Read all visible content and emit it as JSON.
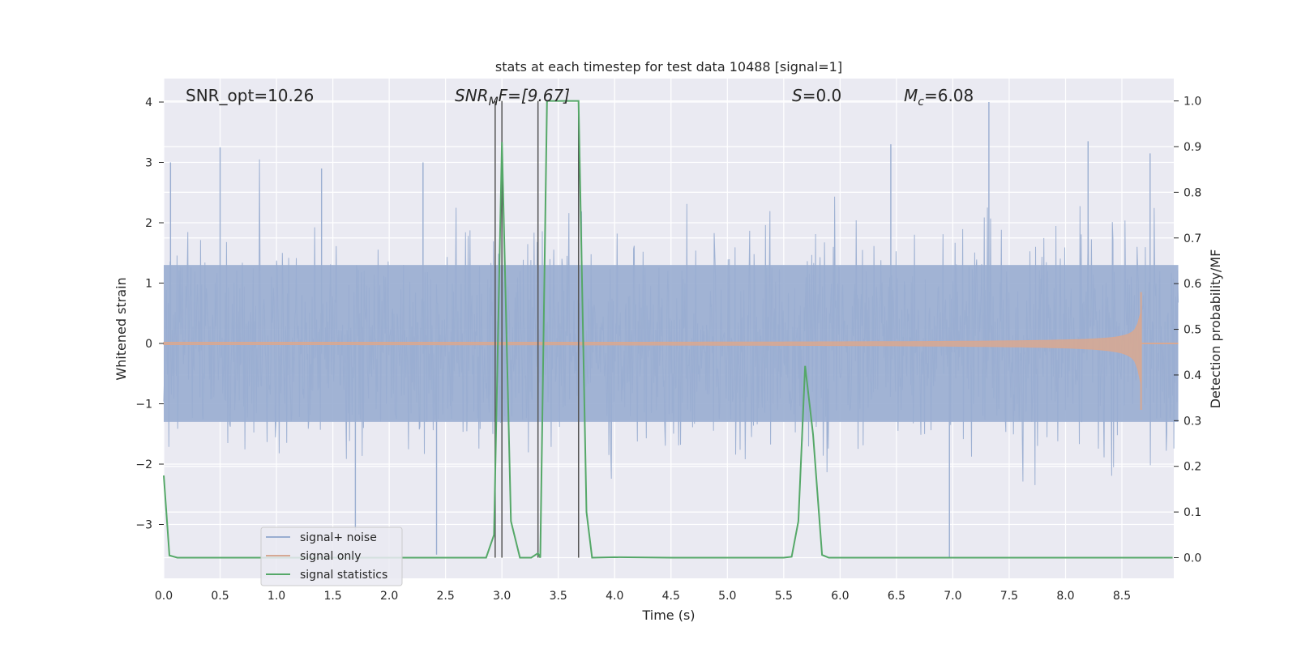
{
  "chart_data": {
    "type": "line",
    "title": "stats at each timestep for test data 10488 [signal=1]",
    "xlabel": "Time (s)",
    "ylabel": "Whitened strain",
    "y2label": "Detection probability/MF",
    "xlim": [
      0.0,
      9.0
    ],
    "ylim": [
      -3.9,
      4.35
    ],
    "y2lim": [
      -0.048,
      1.045
    ],
    "x_ticks": [
      "0.0",
      "0.5",
      "1.0",
      "1.5",
      "2.0",
      "2.5",
      "3.0",
      "3.5",
      "4.0",
      "4.5",
      "5.0",
      "5.5",
      "6.0",
      "6.5",
      "7.0",
      "7.5",
      "8.0",
      "8.5"
    ],
    "y_ticks": [
      "4",
      "3",
      "2",
      "1",
      "0",
      "−1",
      "−2",
      "−3"
    ],
    "y_tick_values": [
      4,
      3,
      2,
      1,
      0,
      -1,
      -2,
      -3
    ],
    "y2_ticks": [
      "1.0",
      "0.9",
      "0.8",
      "0.7",
      "0.6",
      "0.5",
      "0.4",
      "0.3",
      "0.2",
      "0.1",
      "0.0"
    ],
    "y2_tick_values": [
      1.0,
      0.9,
      0.8,
      0.7,
      0.6,
      0.5,
      0.4,
      0.3,
      0.2,
      0.1,
      0.0
    ],
    "grid": true,
    "legend_position": "lower-left",
    "annotations": {
      "snr_opt": "SNR_opt=10.26",
      "snr_mf_main": "SNR",
      "snr_mf_sub": "M",
      "snr_mf_rest": "F=[9.67]",
      "s_main": "S",
      "s_rest": "=0.0",
      "mc_main": "M",
      "mc_sub": "c",
      "mc_rest": "=6.08"
    },
    "vertical_markers": [
      2.94,
      3.0,
      3.32,
      3.68
    ],
    "series": [
      {
        "name": "signal+ noise",
        "color": "#9aaed1",
        "description_shape": "white-noise band, amplitude about ±1.3 with spikes to ±3.3",
        "time_range": [
          0.0,
          9.0
        ],
        "band_amplitude": 1.3,
        "peak_samples": [
          {
            "x": 0.06,
            "y": 3.0
          },
          {
            "x": 0.5,
            "y": 3.25
          },
          {
            "x": 1.4,
            "y": 2.9
          },
          {
            "x": 2.3,
            "y": 3.0
          },
          {
            "x": 6.45,
            "y": 3.3
          },
          {
            "x": 7.32,
            "y": 4.0
          },
          {
            "x": 8.2,
            "y": 3.35
          },
          {
            "x": 8.75,
            "y": 3.15
          },
          {
            "x": 1.7,
            "y": -3.1
          },
          {
            "x": 2.42,
            "y": -3.5
          },
          {
            "x": 6.97,
            "y": -3.55
          }
        ]
      },
      {
        "name": "signal only",
        "color": "#d6a894",
        "description_shape": "chirp starting near 3.3 s, amplitude growing until merger at ~8.67 s",
        "time_range": [
          0.0,
          9.0
        ],
        "merger_time": 8.67,
        "max_amplitude_top": 0.85,
        "max_amplitude_bottom": -1.1
      },
      {
        "name": "signal statistics",
        "color": "#55a868",
        "axis": "right",
        "x": [
          0.0,
          0.05,
          0.12,
          0.3,
          0.5,
          1.0,
          1.5,
          2.0,
          2.5,
          2.86,
          2.93,
          3.0,
          3.08,
          3.16,
          3.26,
          3.32,
          3.34,
          3.4,
          3.5,
          3.6,
          3.68,
          3.75,
          3.8,
          4.0,
          4.5,
          5.0,
          5.5,
          5.57,
          5.63,
          5.69,
          5.76,
          5.84,
          5.9,
          6.0,
          6.5,
          7.0,
          7.5,
          8.0,
          8.5,
          8.95
        ],
        "y": [
          0.18,
          0.005,
          0.0,
          0.0,
          0.0,
          0.0,
          0.0,
          0.0,
          0.0,
          0.0,
          0.05,
          0.91,
          0.08,
          0.0,
          0.0,
          0.01,
          0.0,
          1.0,
          1.0,
          1.0,
          1.0,
          0.1,
          0.0,
          0.001,
          0.0,
          0.0,
          0.0,
          0.002,
          0.08,
          0.42,
          0.27,
          0.006,
          0.0,
          0.0,
          0.0,
          0.0,
          0.0,
          0.0,
          0.0,
          0.0
        ]
      }
    ]
  }
}
